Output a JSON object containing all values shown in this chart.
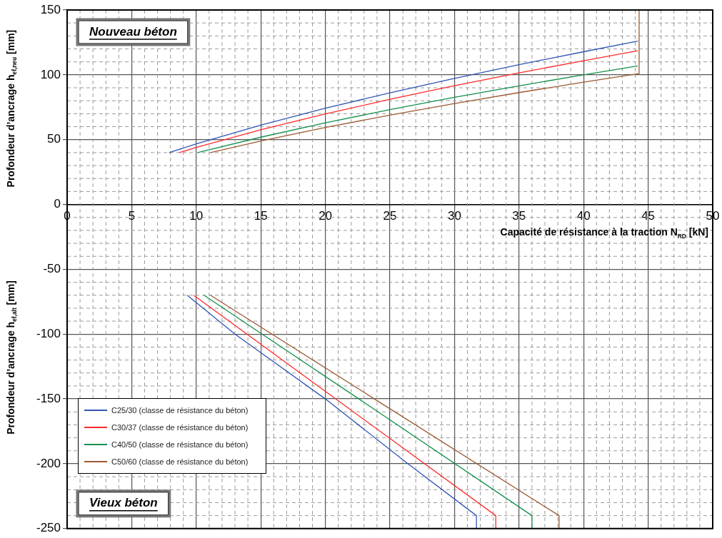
{
  "chart_data": {
    "type": "line",
    "xlabel": "Capacité de résistance à la traction N$_{RD}$ [kN]",
    "ylabel": "Profondeur d’ancrage h$_{ef,neu}$ [mm]",
    "annotations": [
      "Nouveau béton",
      "Vieux béton",
      "Profondeur d’ancrage h$_{ef,alt}$ [mm]"
    ],
    "series": [
      {
        "name": "C25/30 (classe de résistance du béton)",
        "color": "#2f55b4",
        "x": [
          7.9,
          10,
          15,
          20,
          25,
          30,
          35,
          40,
          44.2,
          null,
          9.3,
          13,
          20,
          26.4,
          31.7,
          31.7
        ],
        "values": [
          40,
          46.7,
          61.2,
          74.2,
          86.1,
          97.2,
          107.8,
          117.8,
          126,
          null,
          -70,
          -100,
          -150,
          -200,
          -240,
          -250
        ]
      },
      {
        "name": "C30/37 (classe de résistance du béton)",
        "color": "#ff2b2b",
        "x": [
          8.7,
          10,
          15,
          20,
          25,
          30,
          35,
          40,
          44.2,
          null,
          9.8,
          20.8,
          33.2,
          33.2
        ],
        "values": [
          40,
          44,
          57.6,
          69.8,
          81.1,
          91.6,
          101.5,
          110.9,
          118.5,
          null,
          -70,
          -150,
          -240,
          -250
        ]
      },
      {
        "name": "C40/50 (classe de résistance du béton)",
        "color": "#13904a",
        "x": [
          10.1,
          15,
          20,
          25,
          30,
          35,
          40,
          44.2,
          null,
          10.6,
          22.6,
          36,
          36
        ],
        "values": [
          40,
          51.9,
          63,
          73.1,
          82.6,
          91.5,
          100,
          106.9,
          null,
          -70,
          -150,
          -240,
          -250
        ]
      },
      {
        "name": "C50/60 (classe de résistance du béton)",
        "color": "#9c5a32",
        "x": [
          11.1,
          15,
          20,
          25,
          30,
          35,
          40,
          44.2,
          44.3,
          44.3,
          null,
          11.1,
          23.8,
          38.1,
          38.1
        ],
        "values": [
          40,
          49,
          59.4,
          68.9,
          77.8,
          86.3,
          94.3,
          100.8,
          101,
          150,
          null,
          -70,
          -150,
          -240,
          -250
        ]
      }
    ],
    "xlim": [
      0,
      50
    ],
    "xticks": [
      0,
      5,
      10,
      15,
      20,
      25,
      30,
      35,
      40,
      45,
      50
    ],
    "ylim": [
      -250,
      150
    ],
    "yticks": [
      -250,
      -200,
      -150,
      -100,
      -50,
      0,
      50,
      100,
      150
    ],
    "grid": true,
    "legend": "bottom left",
    "marker": "none",
    "line_style": "solid"
  }
}
